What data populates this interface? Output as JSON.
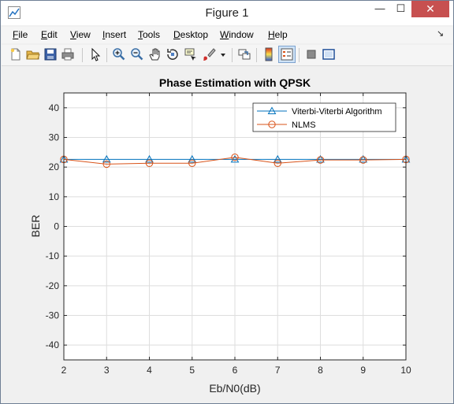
{
  "window": {
    "title": "Figure 1",
    "min_glyph": "—",
    "max_glyph": "☐",
    "close_glyph": "✕"
  },
  "menu": [
    {
      "label": "File",
      "mnemonic": "F",
      "rest": "ile"
    },
    {
      "label": "Edit",
      "mnemonic": "E",
      "rest": "dit"
    },
    {
      "label": "View",
      "mnemonic": "V",
      "rest": "iew"
    },
    {
      "label": "Insert",
      "mnemonic": "I",
      "rest": "nsert"
    },
    {
      "label": "Tools",
      "mnemonic": "T",
      "rest": "ools"
    },
    {
      "label": "Desktop",
      "mnemonic": "D",
      "rest": "esktop"
    },
    {
      "label": "Window",
      "mnemonic": "W",
      "rest": "indow"
    },
    {
      "label": "Help",
      "mnemonic": "H",
      "rest": "elp"
    }
  ],
  "toolbar_icons": [
    "new-figure-icon",
    "open-file-icon",
    "save-figure-icon",
    "print-figure-icon",
    "edit-plot-icon",
    "zoom-in-icon",
    "zoom-out-icon",
    "pan-icon",
    "rotate-3d-icon",
    "data-cursor-icon",
    "brush-icon",
    "brush-dropdown-icon",
    "link-plot-icon",
    "insert-colorbar-icon",
    "insert-legend-icon",
    "hide-plot-tools-icon",
    "show-plot-tools-icon"
  ],
  "colors": {
    "series1": "#0072bd",
    "series2": "#d95319",
    "grid": "#dedede"
  },
  "chart_data": {
    "type": "line",
    "title": "Phase Estimation with QPSK",
    "xlabel": "Eb/N0(dB)",
    "ylabel": "BER",
    "xlim": [
      2,
      10
    ],
    "ylim": [
      -45,
      45
    ],
    "x_ticks": [
      2,
      3,
      4,
      5,
      6,
      7,
      8,
      9,
      10
    ],
    "y_ticks": [
      -40,
      -30,
      -20,
      -10,
      0,
      10,
      20,
      30,
      40
    ],
    "grid": true,
    "legend_position": "top-right",
    "x": [
      2,
      3,
      4,
      5,
      6,
      7,
      8,
      9,
      10
    ],
    "series": [
      {
        "name": "Viterbi-Viterbi Algorithm",
        "marker": "triangle",
        "color": "#0072bd",
        "values": [
          22.6,
          22.6,
          22.6,
          22.6,
          22.6,
          22.6,
          22.6,
          22.6,
          22.6
        ]
      },
      {
        "name": "NLMS",
        "marker": "circle",
        "color": "#d95319",
        "values": [
          22.6,
          21.0,
          21.3,
          21.3,
          23.3,
          21.3,
          22.4,
          22.4,
          22.6
        ]
      }
    ]
  }
}
